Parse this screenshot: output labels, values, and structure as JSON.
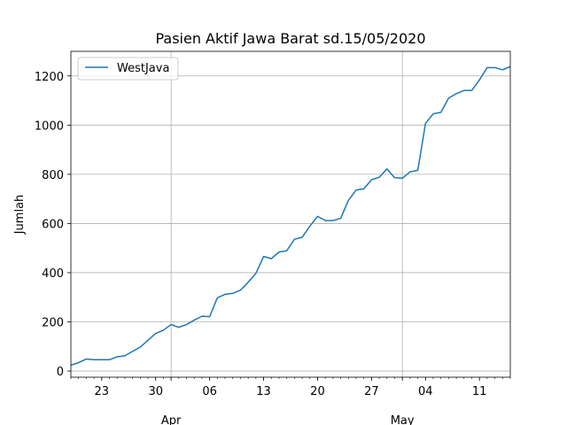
{
  "chart_data": {
    "type": "line",
    "title": "Pasien Aktif Jawa Barat sd.15/05/2020",
    "xlabel": "",
    "ylabel": "Jumlah",
    "x_range": [
      "2020-03-19",
      "2020-05-15"
    ],
    "ylim": [
      -25,
      1300
    ],
    "y_ticks": [
      0,
      200,
      400,
      600,
      800,
      1000,
      1200
    ],
    "x_minor_ticks": [
      {
        "date": "2020-03-23",
        "label": "23"
      },
      {
        "date": "2020-03-30",
        "label": "30"
      },
      {
        "date": "2020-04-06",
        "label": "06"
      },
      {
        "date": "2020-04-13",
        "label": "13"
      },
      {
        "date": "2020-04-20",
        "label": "20"
      },
      {
        "date": "2020-04-27",
        "label": "27"
      },
      {
        "date": "2020-05-04",
        "label": "04"
      },
      {
        "date": "2020-05-11",
        "label": "11"
      }
    ],
    "x_major_ticks": [
      {
        "date": "2020-04-01",
        "label": "Apr"
      },
      {
        "date": "2020-05-01",
        "label": "May"
      }
    ],
    "grid": true,
    "legend_position": "top-left",
    "series": [
      {
        "name": "WestJava",
        "color": "#1f77b4",
        "x": [
          "2020-03-19",
          "2020-03-20",
          "2020-03-21",
          "2020-03-22",
          "2020-03-23",
          "2020-03-24",
          "2020-03-25",
          "2020-03-26",
          "2020-03-27",
          "2020-03-28",
          "2020-03-29",
          "2020-03-30",
          "2020-03-31",
          "2020-04-01",
          "2020-04-02",
          "2020-04-03",
          "2020-04-04",
          "2020-04-05",
          "2020-04-06",
          "2020-04-07",
          "2020-04-08",
          "2020-04-09",
          "2020-04-10",
          "2020-04-11",
          "2020-04-12",
          "2020-04-13",
          "2020-04-14",
          "2020-04-15",
          "2020-04-16",
          "2020-04-17",
          "2020-04-18",
          "2020-04-19",
          "2020-04-20",
          "2020-04-21",
          "2020-04-22",
          "2020-04-23",
          "2020-04-24",
          "2020-04-25",
          "2020-04-26",
          "2020-04-27",
          "2020-04-28",
          "2020-04-29",
          "2020-04-30",
          "2020-05-01",
          "2020-05-02",
          "2020-05-03",
          "2020-05-04",
          "2020-05-05",
          "2020-05-06",
          "2020-05-07",
          "2020-05-08",
          "2020-05-09",
          "2020-05-10",
          "2020-05-11",
          "2020-05-12",
          "2020-05-13",
          "2020-05-14",
          "2020-05-15"
        ],
        "values": [
          24,
          34,
          49,
          46,
          46,
          46,
          58,
          62,
          80,
          97,
          125,
          153,
          166,
          189,
          178,
          189,
          207,
          223,
          221,
          298,
          312,
          316,
          329,
          361,
          397,
          466,
          457,
          484,
          489,
          536,
          544,
          589,
          629,
          612,
          612,
          621,
          694,
          736,
          741,
          778,
          788,
          822,
          786,
          784,
          810,
          816,
          1007,
          1046,
          1052,
          1110,
          1128,
          1141,
          1141,
          1184,
          1234,
          1234,
          1225,
          1238
        ]
      }
    ]
  }
}
